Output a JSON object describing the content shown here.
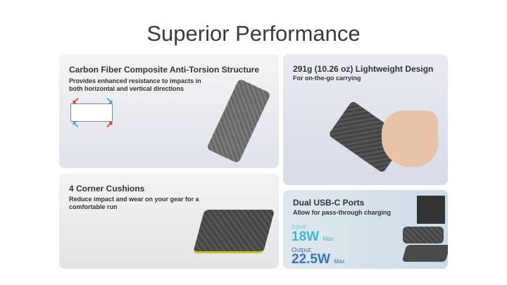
{
  "title": "Superior Performance",
  "cards": [
    {
      "heading": "Carbon Fiber Composite Anti-Torsion Structure",
      "sub": "Provides enhanced resistance to impacts in both horizontal and vertical directions"
    },
    {
      "heading": "291g (10.26 oz) Lightweight Design",
      "sub": "For on-the-go carrying"
    },
    {
      "heading": "4 Corner Cushions",
      "sub": "Reduce impact and wear on your gear for a comfortable run"
    },
    {
      "heading": "Dual USB-C Ports",
      "sub": "Allow for pass-through charging",
      "input_label": "Input:",
      "input_value": "18W",
      "input_max": "Max",
      "output_label": "Output:",
      "output_value": "22.5W",
      "output_max": "Max"
    }
  ],
  "colors": {
    "input": "#3fb6d0",
    "output": "#3a72b8",
    "red_arrow": "#e8322b",
    "blue_arrow": "#3aa5e0",
    "accent_yellow": "#c8c02a"
  }
}
